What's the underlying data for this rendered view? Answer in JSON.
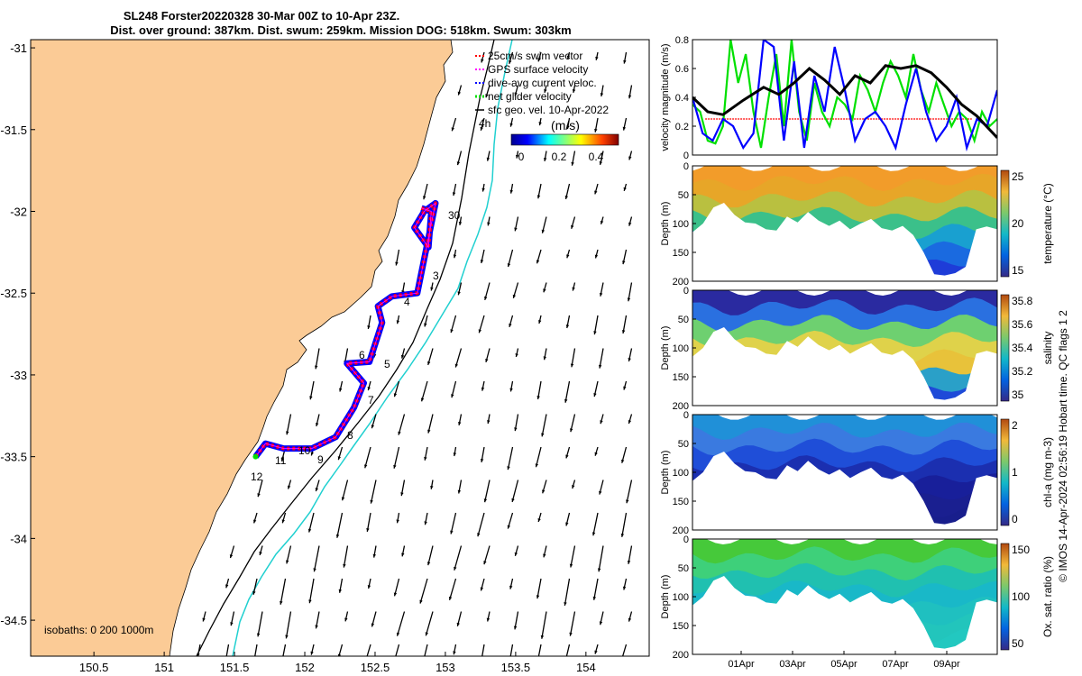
{
  "header": {
    "line1": "SL248 Forster20220328 30-Mar 00Z to 10-Apr 23Z.",
    "line2": "Dist. over ground: 387km. Dist. swum: 259km. Mission DOG: 518km. Swum: 303km"
  },
  "footer_credit": "© IMOS 14-Apr-2024 02:56:19 Hobart time. QC flags 1  2",
  "colors": {
    "land": "#fbcb96",
    "gps": "#ff00ff",
    "dive_avg": "#0000ff",
    "net_glider": "#00e000",
    "swim": "#ff0000",
    "isobath_200": "#000000",
    "isobath_1000": "#20d0d0"
  },
  "chart_data": [
    {
      "type": "map",
      "title": "",
      "x_ticks": [
        "150.5",
        "151",
        "151.5",
        "152",
        "152.5",
        "153",
        "153.5",
        "154"
      ],
      "y_ticks": [
        "-31",
        "-31.5",
        "-32",
        "-32.5",
        "-33",
        "-33.5",
        "-34",
        "-34.5"
      ],
      "xlim": [
        150.05,
        154.45
      ],
      "ylim": [
        -34.72,
        -30.95
      ],
      "legend": {
        "items": [
          {
            "label": "25cm/s swim vector",
            "color": "#ff0000"
          },
          {
            "label": "GPS surface velocity",
            "color": "#ff00ff"
          },
          {
            "label": "dive-avg current veloc.",
            "color": "#0000ff"
          },
          {
            "label": "net glider velocity",
            "color": "#00e000"
          },
          {
            "label": "sfc geo. vel. 10-Apr-2022",
            "color": "#000000"
          }
        ]
      },
      "colorbar": {
        "label": "(m/s)",
        "ticks": [
          "0",
          "0.2",
          "0.4"
        ],
        "range": [
          0,
          0.45
        ]
      },
      "isobath_label": "isobaths: 0   200  1000m",
      "age_label": "4h",
      "day_labels": [
        "30",
        "3",
        "4",
        "5",
        "6",
        "7",
        "8",
        "9",
        "10",
        "11",
        "12"
      ],
      "track": {
        "lon": [
          152.83,
          152.9,
          152.88,
          152.78,
          152.85,
          152.93,
          152.8,
          152.62,
          152.52,
          152.55,
          152.46,
          152.3,
          152.42,
          152.35,
          152.22,
          152.05,
          151.85,
          151.72,
          151.65
        ],
        "lat": [
          -31.98,
          -32.0,
          -32.22,
          -32.1,
          -32.0,
          -31.95,
          -32.5,
          -32.52,
          -32.58,
          -32.68,
          -32.92,
          -32.93,
          -33.05,
          -33.2,
          -33.38,
          -33.45,
          -33.45,
          -33.42,
          -33.5
        ]
      }
    },
    {
      "type": "line",
      "ylabel": "velocity magnitude (m/s)",
      "ylim": [
        0,
        0.8
      ],
      "y_ticks": [
        "0",
        "0.2",
        "0.4",
        "0.6",
        "0.8"
      ],
      "series": [
        {
          "color": "#000000",
          "t": [
            0,
            0.6,
            1.2,
            2.0,
            2.8,
            3.4,
            4.0,
            4.6,
            5.2,
            5.8,
            6.4,
            7.0,
            7.6,
            8.2,
            8.8,
            9.4,
            10.0,
            10.6,
            11.2,
            12.0
          ],
          "values": [
            0.4,
            0.3,
            0.28,
            0.38,
            0.47,
            0.42,
            0.5,
            0.6,
            0.52,
            0.42,
            0.55,
            0.5,
            0.62,
            0.6,
            0.62,
            0.57,
            0.47,
            0.35,
            0.27,
            0.12
          ]
        },
        {
          "color": "#00e000",
          "t": [
            0,
            0.3,
            0.6,
            0.9,
            1.2,
            1.5,
            1.8,
            2.1,
            2.4,
            2.7,
            3.0,
            3.3,
            3.6,
            3.9,
            4.2,
            4.5,
            4.8,
            5.1,
            5.4,
            5.7,
            6.0,
            6.3,
            6.6,
            6.9,
            7.2,
            7.5,
            7.8,
            8.1,
            8.4,
            8.7,
            9.0,
            9.3,
            9.6,
            9.9,
            10.2,
            10.5,
            10.8,
            11.1,
            11.4,
            11.7,
            12.0
          ],
          "values": [
            0.35,
            0.3,
            0.1,
            0.08,
            0.2,
            0.8,
            0.5,
            0.7,
            0.3,
            0.05,
            0.4,
            0.7,
            0.2,
            0.8,
            0.3,
            0.1,
            0.5,
            0.3,
            0.2,
            0.4,
            0.35,
            0.25,
            0.55,
            0.45,
            0.3,
            0.5,
            0.65,
            0.55,
            0.4,
            0.7,
            0.45,
            0.3,
            0.5,
            0.35,
            0.2,
            0.3,
            0.25,
            0.1,
            0.3,
            0.2,
            0.25
          ]
        },
        {
          "color": "#0000ff",
          "t": [
            0,
            0.4,
            0.8,
            1.2,
            1.6,
            2.0,
            2.4,
            2.8,
            3.2,
            3.6,
            4.0,
            4.4,
            4.8,
            5.2,
            5.6,
            6.0,
            6.4,
            6.8,
            7.2,
            7.6,
            8.0,
            8.4,
            8.8,
            9.2,
            9.6,
            10.0,
            10.4,
            10.8,
            11.2,
            11.6,
            12.0
          ],
          "values": [
            0.4,
            0.15,
            0.1,
            0.25,
            0.2,
            0.05,
            0.15,
            0.8,
            0.75,
            0.1,
            0.65,
            0.05,
            0.55,
            0.3,
            0.75,
            0.45,
            0.1,
            0.25,
            0.3,
            0.2,
            0.05,
            0.35,
            0.6,
            0.3,
            0.1,
            0.2,
            0.4,
            0.05,
            0.25,
            0.2,
            0.45
          ]
        },
        {
          "color": "#ff0000",
          "t": [
            0.5,
            11.0
          ],
          "values": [
            0.25,
            0.25
          ]
        }
      ]
    },
    {
      "type": "heatmap",
      "variable": "temperature",
      "ylabel": "Depth (m)",
      "colorbar_label": "temperature (°C)",
      "colorbar_ticks": [
        "25",
        "20",
        "15"
      ],
      "y_ticks": [
        "0",
        "50",
        "100",
        "150",
        "200"
      ],
      "ylim": [
        200,
        0
      ]
    },
    {
      "type": "heatmap",
      "variable": "salinity",
      "ylabel": "Depth (m)",
      "colorbar_label": "salinity",
      "colorbar_ticks": [
        "35.8",
        "35.6",
        "35.4",
        "35.2",
        "35"
      ],
      "y_ticks": [
        "0",
        "50",
        "100",
        "150",
        "200"
      ],
      "ylim": [
        200,
        0
      ]
    },
    {
      "type": "heatmap",
      "variable": "chl-a",
      "ylabel": "Depth (m)",
      "colorbar_label": "chl-a (mg m-3)",
      "colorbar_ticks": [
        "2",
        "1",
        "0"
      ],
      "y_ticks": [
        "0",
        "50",
        "100",
        "150",
        "200"
      ],
      "ylim": [
        200,
        0
      ]
    },
    {
      "type": "heatmap",
      "variable": "oxygen saturation",
      "ylabel": "Depth (m)",
      "colorbar_label": "Ox. sat. ratio (%)",
      "colorbar_ticks": [
        "150",
        "100",
        "50"
      ],
      "y_ticks": [
        "0",
        "50",
        "100",
        "150",
        "200"
      ],
      "ylim": [
        200,
        0
      ],
      "x_ticks": [
        "01Apr",
        "03Apr",
        "05Apr",
        "07Apr",
        "09Apr"
      ]
    }
  ]
}
